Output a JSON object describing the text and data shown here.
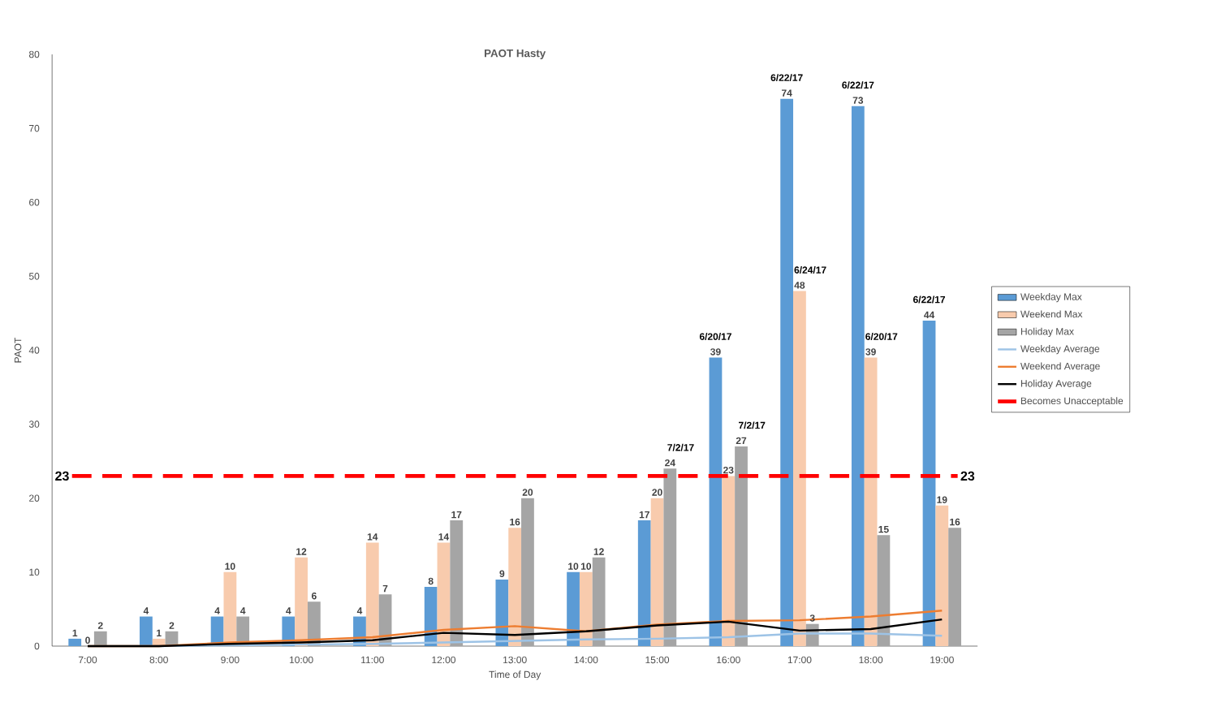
{
  "chart_data": {
    "type": "bar",
    "title": "PAOT Hasty",
    "xlabel": "Time of Day",
    "ylabel": "PAOT",
    "categories": [
      "7:00",
      "8:00",
      "9:00",
      "10:00",
      "11:00",
      "12:00",
      "13:00",
      "14:00",
      "15:00",
      "16:00",
      "17:00",
      "18:00",
      "19:00"
    ],
    "series": [
      {
        "name": "Weekday Max",
        "color": "#5b9bd5",
        "values": [
          1,
          4,
          4,
          4,
          4,
          8,
          9,
          10,
          17,
          39,
          74,
          73,
          44
        ],
        "value_labels": [
          "1",
          "4",
          "4",
          "4",
          "4",
          "8",
          "9",
          "10",
          "17",
          "39",
          "74",
          "73",
          "44"
        ]
      },
      {
        "name": "Weekend Max",
        "color": "#f8cbad",
        "values": [
          0,
          1,
          10,
          12,
          14,
          14,
          16,
          10,
          20,
          23,
          48,
          39,
          19
        ],
        "value_labels": [
          "0",
          "1",
          "10",
          "12",
          "14",
          "14",
          "16",
          "10",
          "20",
          "23",
          "48",
          "39",
          "19"
        ]
      },
      {
        "name": "Holiday Max",
        "color": "#a5a5a5",
        "values": [
          2,
          2,
          4,
          6,
          7,
          17,
          20,
          12,
          24,
          27,
          3,
          15,
          16
        ],
        "value_labels": [
          "2",
          "2",
          "4",
          "6",
          "7",
          "17",
          "20",
          "12",
          "24",
          "27",
          "3",
          "15",
          "16"
        ]
      },
      {
        "name": "Weekday Average",
        "type": "line",
        "color": "#9dc3e6",
        "values": [
          0,
          0,
          0.1,
          0.2,
          0.3,
          0.5,
          0.7,
          0.9,
          1.0,
          1.2,
          1.7,
          1.7,
          1.4
        ]
      },
      {
        "name": "Weekend Average",
        "type": "line",
        "color": "#ed7d31",
        "values": [
          0,
          0,
          0.5,
          0.8,
          1.2,
          2.2,
          2.7,
          2.0,
          2.9,
          3.4,
          3.5,
          4.0,
          4.8
        ]
      },
      {
        "name": "Holiday Average",
        "type": "line",
        "color": "#000000",
        "values": [
          0,
          0,
          0.3,
          0.5,
          0.8,
          1.8,
          1.5,
          2.0,
          2.8,
          3.3,
          2.1,
          2.3,
          3.6
        ]
      }
    ],
    "ref_lines": [
      {
        "axis": "y",
        "value": 23,
        "label": "Becomes Unacceptable",
        "color": "#ff0000",
        "line_style": "dashed"
      }
    ],
    "annotations": [
      "6/20/17",
      "6/22/17",
      "6/22/17",
      "6/22/17",
      "6/24/17",
      "6/20/17",
      "7/2/17",
      "7/2/17",
      "23",
      "23"
    ],
    "ylim": [
      0,
      80
    ],
    "yticks": [
      0,
      10,
      20,
      30,
      40,
      50,
      60,
      70,
      80
    ],
    "legend": "right",
    "grid": false
  }
}
